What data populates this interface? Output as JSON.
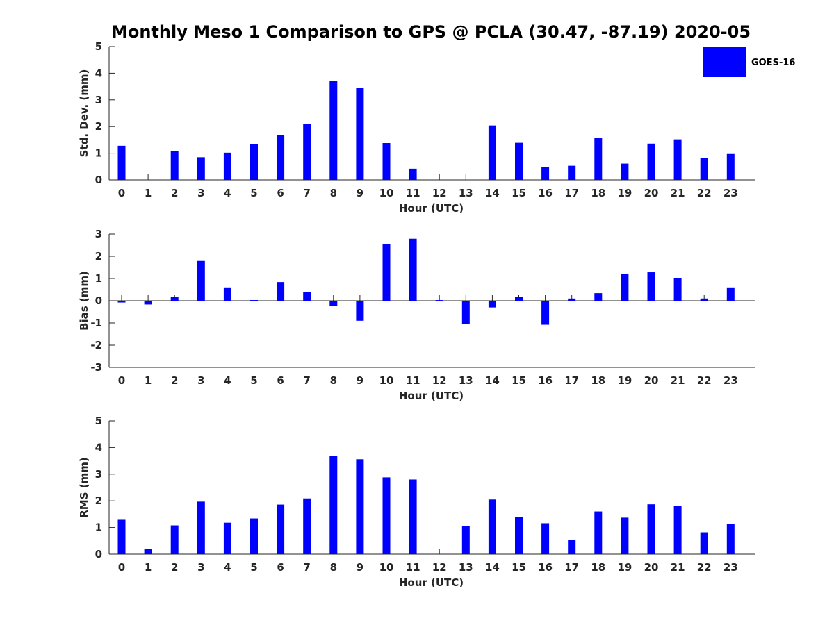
{
  "chart_data": [
    {
      "type": "bar",
      "title": "Monthly Meso 1 Comparison to GPS @ PCLA (30.47, -87.19) 2020-05",
      "xlabel": "Hour (UTC)",
      "ylabel": "Std. Dev. (mm)",
      "ylim": [
        0,
        5
      ],
      "yticks": [
        0,
        1,
        2,
        3,
        4,
        5
      ],
      "categories": [
        "0",
        "1",
        "2",
        "3",
        "4",
        "5",
        "6",
        "7",
        "8",
        "9",
        "10",
        "11",
        "12",
        "13",
        "14",
        "15",
        "16",
        "17",
        "18",
        "19",
        "20",
        "21",
        "22",
        "23"
      ],
      "series": [
        {
          "name": "GOES-16",
          "color": "#0000ff",
          "values": [
            1.28,
            null,
            1.07,
            0.85,
            1.02,
            1.33,
            1.67,
            2.09,
            3.7,
            3.45,
            1.38,
            0.42,
            null,
            null,
            2.04,
            1.39,
            0.48,
            0.53,
            1.57,
            0.61,
            1.36,
            1.52,
            0.82,
            0.97
          ]
        }
      ],
      "legend": {
        "placement": "top-right",
        "entries": [
          "GOES-16"
        ]
      }
    },
    {
      "type": "bar",
      "title": "",
      "xlabel": "Hour (UTC)",
      "ylabel": "Bias (mm)",
      "ylim": [
        -3,
        3
      ],
      "yticks": [
        -3,
        -2,
        -1,
        0,
        1,
        2,
        3
      ],
      "categories": [
        "0",
        "1",
        "2",
        "3",
        "4",
        "5",
        "6",
        "7",
        "8",
        "9",
        "10",
        "11",
        "12",
        "13",
        "14",
        "15",
        "16",
        "17",
        "18",
        "19",
        "20",
        "21",
        "22",
        "23"
      ],
      "series": [
        {
          "name": "GOES-16",
          "color": "#0000ff",
          "values": [
            -0.08,
            -0.17,
            0.16,
            1.79,
            0.6,
            0.03,
            0.84,
            0.38,
            -0.22,
            -0.9,
            2.55,
            2.79,
            0.03,
            -1.05,
            -0.3,
            0.18,
            -1.08,
            0.1,
            0.34,
            1.22,
            1.28,
            1.0,
            0.1,
            0.6
          ]
        }
      ]
    },
    {
      "type": "bar",
      "title": "",
      "xlabel": "Hour (UTC)",
      "ylabel": "RMS (mm)",
      "ylim": [
        0,
        5
      ],
      "yticks": [
        0,
        1,
        2,
        3,
        4,
        5
      ],
      "categories": [
        "0",
        "1",
        "2",
        "3",
        "4",
        "5",
        "6",
        "7",
        "8",
        "9",
        "10",
        "11",
        "12",
        "13",
        "14",
        "15",
        "16",
        "17",
        "18",
        "19",
        "20",
        "21",
        "22",
        "23"
      ],
      "series": [
        {
          "name": "GOES-16",
          "color": "#0000ff",
          "values": [
            1.29,
            0.19,
            1.08,
            1.97,
            1.18,
            1.34,
            1.86,
            2.09,
            3.69,
            3.56,
            2.88,
            2.8,
            null,
            1.05,
            2.05,
            1.4,
            1.16,
            0.53,
            1.6,
            1.37,
            1.87,
            1.81,
            0.82,
            1.14
          ]
        }
      ]
    }
  ]
}
